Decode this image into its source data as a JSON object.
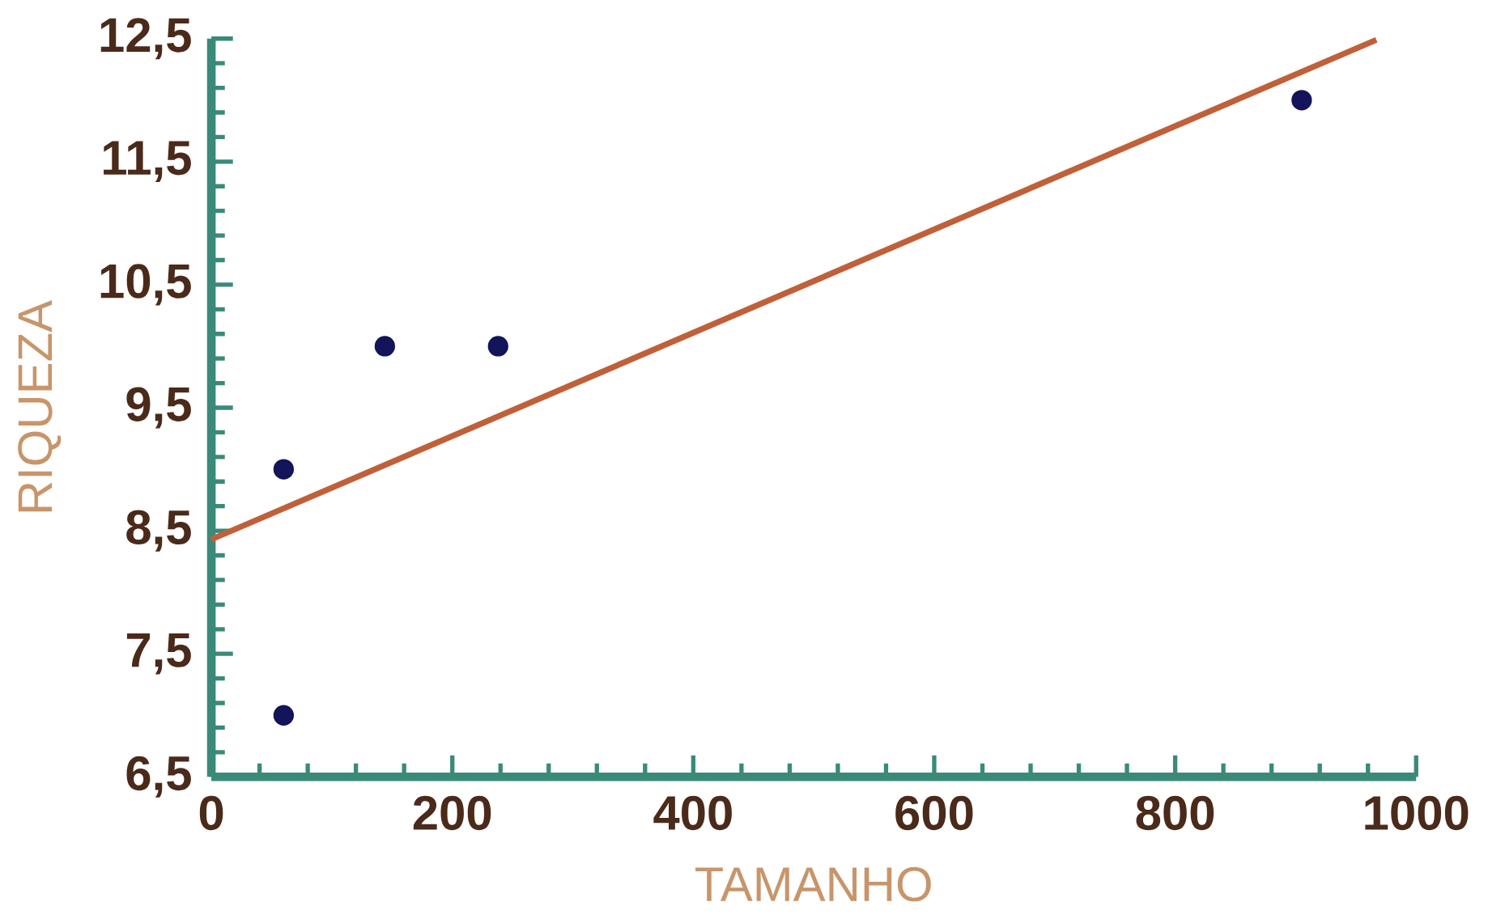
{
  "chart_data": {
    "type": "scatter",
    "xlabel": "TAMANHO",
    "ylabel": "RIQUEZA",
    "xlim": [
      0,
      1000
    ],
    "ylim": [
      6.5,
      12.5
    ],
    "xticks": [
      0,
      200,
      400,
      600,
      800,
      1000
    ],
    "yticks": [
      {
        "value": 6.5,
        "label": "6,5"
      },
      {
        "value": 7.5,
        "label": "7,5"
      },
      {
        "value": 8.5,
        "label": "8,5"
      },
      {
        "value": 9.5,
        "label": "9,5"
      },
      {
        "value": 10.5,
        "label": "10,5"
      },
      {
        "value": 11.5,
        "label": "11,5"
      },
      {
        "value": 12.5,
        "label": "12,5"
      }
    ],
    "grid": false,
    "series": [
      {
        "color": "#14145a",
        "marker": "circle",
        "x": [
          60,
          60,
          144,
          238,
          905
        ],
        "values": [
          7,
          9,
          10,
          10,
          12
        ]
      },
      {
        "type": "line",
        "color": "#c0603a",
        "marker": "none",
        "line_style": "solid",
        "x": [
          0,
          967
        ],
        "values": [
          8.43,
          12.49
        ]
      }
    ]
  }
}
